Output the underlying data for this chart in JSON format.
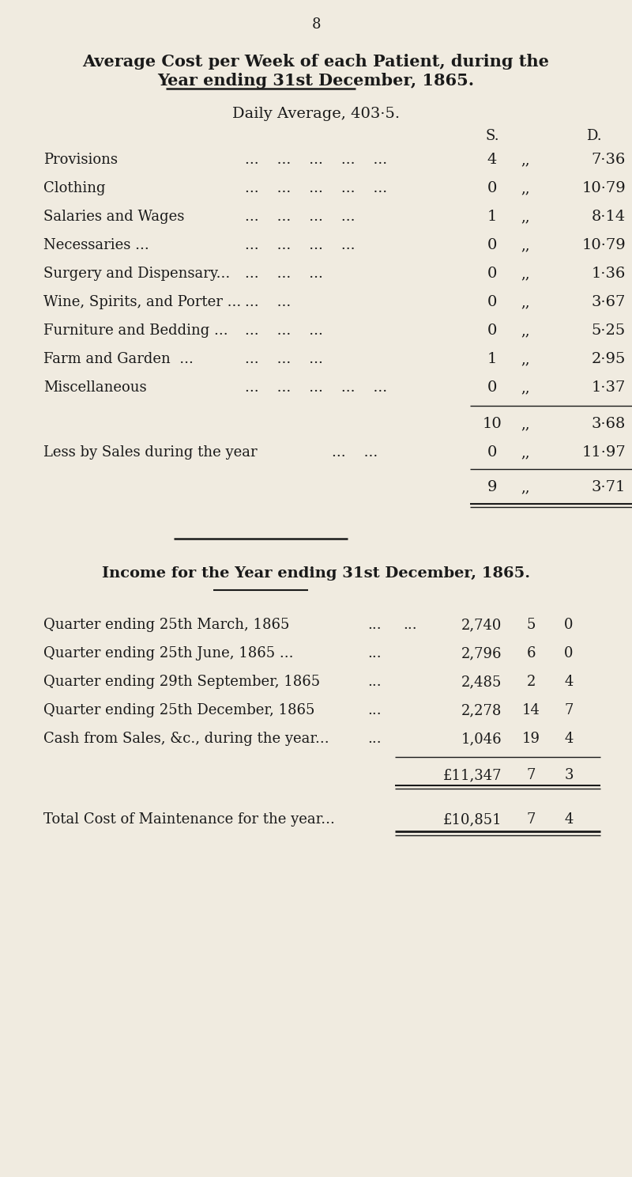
{
  "bg_color": "#f0ebe0",
  "text_color": "#1a1a1a",
  "page_number": "8",
  "title1": "Average Cost per Week of each Patient, during the",
  "title2": "Year ending 31st December, 1865.",
  "daily_average": "Daily Average, 403·5.",
  "col_s": "S.",
  "col_d": "D.",
  "cost_rows": [
    {
      "label": "Provisions",
      "trailing_dots": "...    ...    ...    ...    ...",
      "s": "4",
      "d": "7·36"
    },
    {
      "label": "Clothing",
      "trailing_dots": "...    ...    ...    ...    ...",
      "s": "0",
      "d": "10·79"
    },
    {
      "label": "Salaries and Wages",
      "trailing_dots": "...    ...    ...    ...",
      "s": "1",
      "d": "8·14"
    },
    {
      "label": "Necessaries ...",
      "trailing_dots": "...    ...    ...    ...",
      "s": "0",
      "d": "10·79"
    },
    {
      "label": "Surgery and Dispensary...",
      "trailing_dots": "...    ...    ...",
      "s": "0",
      "d": "1·36"
    },
    {
      "label": "Wine, Spirits, and Porter ...",
      "trailing_dots": "...    ...",
      "s": "0",
      "d": "3·67"
    },
    {
      "label": "Furniture and Bedding ...",
      "trailing_dots": "...    ...    ...",
      "s": "0",
      "d": "5·25"
    },
    {
      "label": "Farm and Garden  ...",
      "trailing_dots": "...    ...    ...",
      "s": "1",
      "d": "2·95"
    },
    {
      "label": "Miscellaneous",
      "trailing_dots": "...    ...    ...    ...    ...",
      "s": "0",
      "d": "1·37"
    }
  ],
  "subtotal_s": "10",
  "subtotal_d": "3·68",
  "less_label": "Less by Sales during the year",
  "less_trailing": "...    ...",
  "less_s": "0",
  "less_d": "11·97",
  "net_s": "9",
  "net_d": "3·71",
  "income_title": "Income for the Year ending 31st December, 1865.",
  "income_rows": [
    {
      "label": "Quarter ending 25th March, 1865",
      "dots1": "...",
      "dots2": "...",
      "pounds": "2,740",
      "s": "5",
      "d": "0"
    },
    {
      "label": "Quarter ending 25th June, 1865 ...",
      "dots1": "...",
      "dots2": "",
      "pounds": "2,796",
      "s": "6",
      "d": "0"
    },
    {
      "label": "Quarter ending 29th September, 1865",
      "dots1": "...",
      "dots2": "",
      "pounds": "2,485",
      "s": "2",
      "d": "4"
    },
    {
      "label": "Quarter ending 25th December, 1865",
      "dots1": "...",
      "dots2": "",
      "pounds": "2,278",
      "s": "14",
      "d": "7"
    },
    {
      "label": "Cash from Sales, &c., during the year...",
      "dots1": "...",
      "dots2": "",
      "pounds": "1,046",
      "s": "19",
      "d": "4"
    }
  ],
  "total_pounds": "£11,347",
  "total_s": "7",
  "total_d": "3",
  "maint_label": "Total Cost of Maintenance for the year...",
  "maint_pounds": "£10,851",
  "maint_s": "7",
  "maint_d": "4"
}
